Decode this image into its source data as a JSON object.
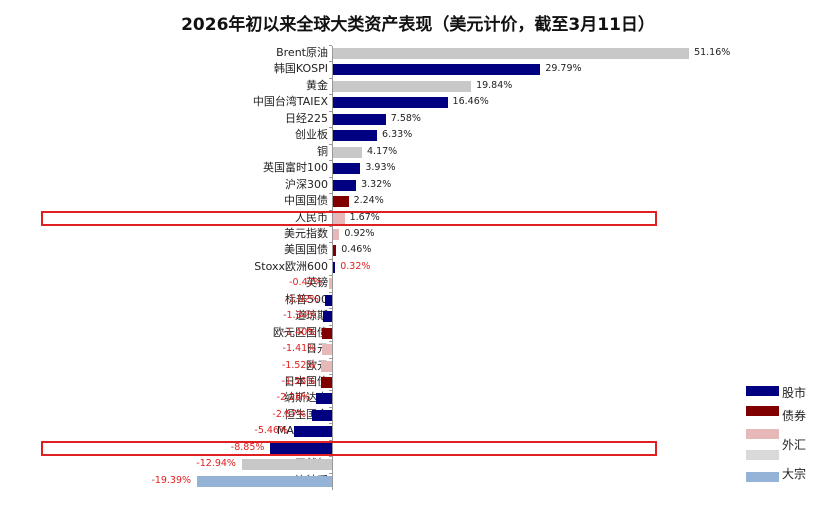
{
  "title": "2026年初以来全球大类资产表现（美元计价，截至3月11日）",
  "colors": {
    "股市": "#000080",
    "债券": "#800000",
    "外汇": "#e6b8b8",
    "大宗商品灰": "#c8c8c8",
    "大宗": "#95b3d7",
    "highlight": "#e02020",
    "negative_label": "#e02020"
  },
  "legend": [
    {
      "label": "股市",
      "color": "#000080"
    },
    {
      "label": "债券",
      "color": "#800000"
    },
    {
      "label": "",
      "color": "#e6b8b8"
    },
    {
      "label": "外汇",
      "color": "#d9d9d9"
    },
    {
      "label": "大宗",
      "color": "#95b3d7"
    }
  ],
  "highlighted": [
    "人民币",
    "恒生科技"
  ],
  "chart_data": {
    "type": "bar",
    "orientation": "horizontal",
    "title": "2026年初以来全球大类资产表现（美元计价，截至3月11日）",
    "xlabel": "",
    "ylabel": "",
    "grid": false,
    "legend_position": "bottom-right",
    "categories": [
      "Brent原油",
      "韩国KOSPI",
      "黄金",
      "中国台湾TAIEX",
      "日经225",
      "创业板",
      "铜",
      "英国富时100",
      "沪深300",
      "中国国债",
      "人民币",
      "美元指数",
      "美国国债",
      "Stoxx欧洲600",
      "英镑",
      "标普500",
      "道琼斯",
      "欧元区国债",
      "日元",
      "欧元",
      "日本国债",
      "纳斯达克",
      "恒生国企",
      "MAAMNG",
      "恒生科技",
      "天然气",
      "比特币"
    ],
    "values": [
      51.16,
      29.79,
      19.84,
      16.46,
      7.58,
      6.33,
      4.17,
      3.93,
      3.32,
      2.24,
      1.67,
      0.92,
      0.46,
      0.32,
      -0.47,
      -1.02,
      -1.34,
      -1.4,
      -1.41,
      -1.52,
      -1.56,
      -2.26,
      -2.87,
      -5.46,
      -8.85,
      -12.94,
      -19.39
    ],
    "labels": [
      "51.16%",
      "29.79%",
      "19.84%",
      "16.46%",
      "7.58%",
      "6.33%",
      "4.17%",
      "3.93%",
      "3.32%",
      "2.24%",
      "1.67%",
      "0.92%",
      "0.46%",
      "0.32%",
      "-0.47%",
      "-1.02%",
      "-1.34%",
      "-1.40%",
      "-1.41%",
      "-1.52%",
      "-1.56%",
      "-2.26%",
      "-2.87%",
      "-5.46%",
      "-8.85%",
      "-12.94%",
      "-19.39%"
    ],
    "bar_colors": [
      "#c8c8c8",
      "#000080",
      "#c8c8c8",
      "#000080",
      "#000080",
      "#000080",
      "#c8c8c8",
      "#000080",
      "#000080",
      "#800000",
      "#e6b8b8",
      "#e6b8b8",
      "#800000",
      "#000080",
      "#e6b8b8",
      "#000080",
      "#000080",
      "#800000",
      "#e6b8b8",
      "#e6b8b8",
      "#800000",
      "#000080",
      "#000080",
      "#000080",
      "#000080",
      "#c8c8c8",
      "#95b3d7"
    ],
    "label_colors": [
      "#222",
      "#222",
      "#222",
      "#222",
      "#222",
      "#222",
      "#222",
      "#222",
      "#222",
      "#222",
      "#222",
      "#222",
      "#222",
      "#e02020",
      "#e02020",
      "#e02020",
      "#e02020",
      "#e02020",
      "#e02020",
      "#e02020",
      "#e02020",
      "#e02020",
      "#e02020",
      "#e02020",
      "#e02020",
      "#e02020",
      "#e02020"
    ]
  }
}
